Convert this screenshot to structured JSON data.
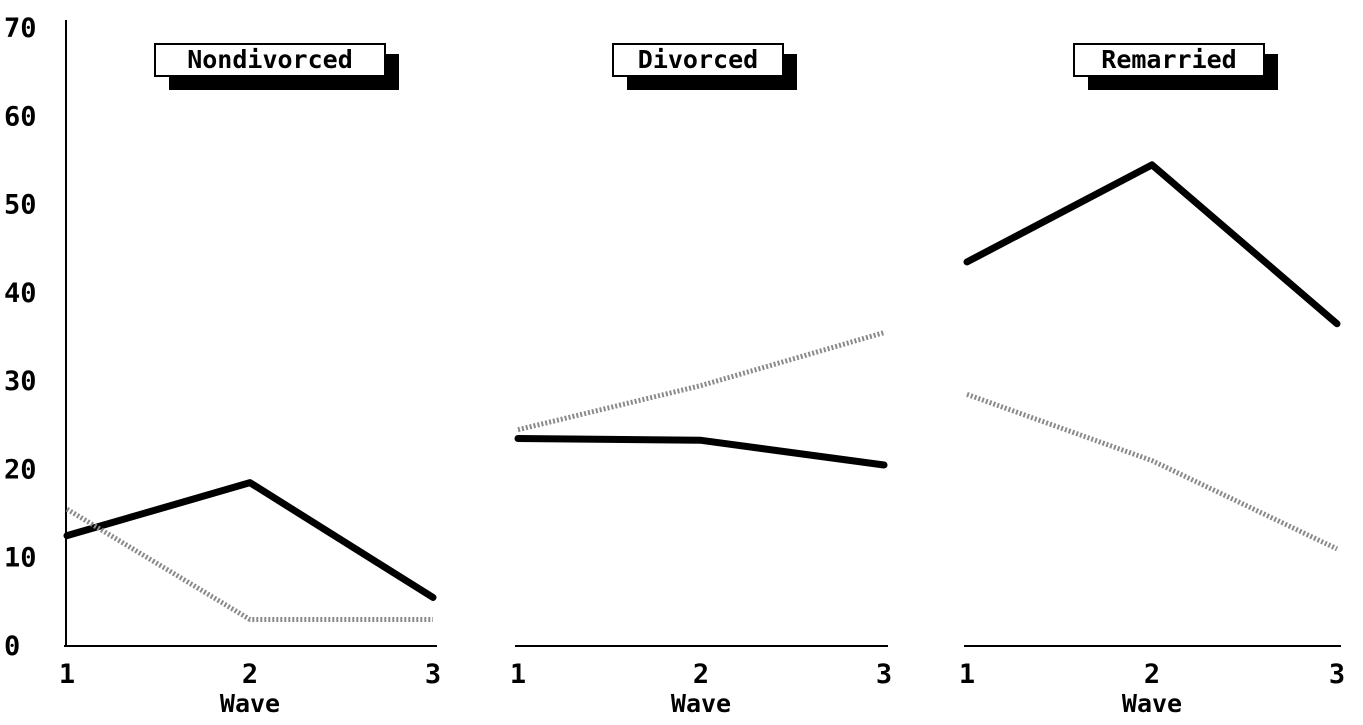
{
  "chart_data": {
    "type": "line",
    "ylim": [
      0,
      70
    ],
    "yticks": [
      "0",
      "10",
      "20",
      "30",
      "40",
      "50",
      "60",
      "70"
    ],
    "grid": false,
    "panels": [
      {
        "title": "Nondivorced",
        "xlabel": "Wave",
        "x": [
          "1",
          "2",
          "3"
        ],
        "series": [
          {
            "style": "solid",
            "values": [
              12.5,
              18.5,
              5.5
            ]
          },
          {
            "style": "dotted",
            "values": [
              15.5,
              3,
              3
            ]
          }
        ]
      },
      {
        "title": "Divorced",
        "xlabel": "Wave",
        "x": [
          "1",
          "2",
          "3"
        ],
        "series": [
          {
            "style": "solid",
            "values": [
              23.5,
              23.3,
              20.5
            ]
          },
          {
            "style": "dotted",
            "values": [
              24.5,
              29.5,
              35.5
            ]
          }
        ]
      },
      {
        "title": "Remarried",
        "xlabel": "Wave",
        "x": [
          "1",
          "2",
          "3"
        ],
        "series": [
          {
            "style": "solid",
            "values": [
              43.5,
              54.5,
              36.5
            ]
          },
          {
            "style": "dotted",
            "values": [
              28.5,
              21,
              11
            ]
          }
        ]
      }
    ],
    "colors": {
      "solid": "#000000",
      "dotted": "#8a8a8a"
    }
  }
}
